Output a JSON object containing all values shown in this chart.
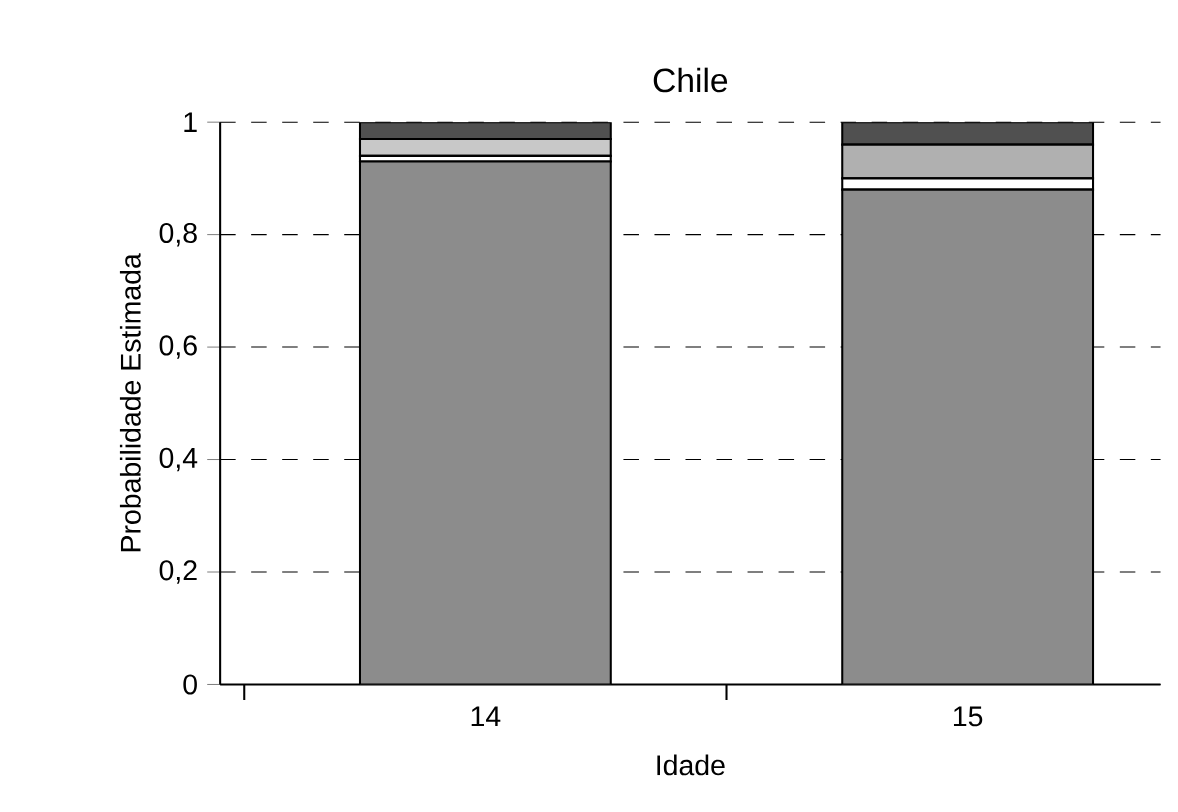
{
  "chart_data": {
    "type": "bar",
    "stacked": true,
    "title": "Chile",
    "xlabel": "Idade",
    "ylabel": "Probabilidade Estimada",
    "categories": [
      "14",
      "15"
    ],
    "series": [
      {
        "color": "#8c8c8c",
        "values": [
          0.93,
          0.88
        ]
      },
      {
        "color": "#ffffff",
        "values": [
          0.01,
          0.02
        ]
      },
      {
        "color": "#c8c8c8",
        "values": [
          0.03,
          0
        ]
      },
      {
        "color": "#b0b0b0",
        "values": [
          0,
          0.06
        ]
      },
      {
        "color": "#505050",
        "values": [
          0.03,
          0.04
        ]
      }
    ],
    "ylim": [
      0,
      1
    ],
    "yticks": [
      0,
      {
        "value": 0.2,
        "label": "0,2"
      },
      {
        "value": 0.4,
        "label": "0,4"
      },
      {
        "value": 0.6,
        "label": "0,6"
      },
      {
        "value": 0.8,
        "label": "0,8"
      },
      1
    ],
    "grid": "y"
  }
}
